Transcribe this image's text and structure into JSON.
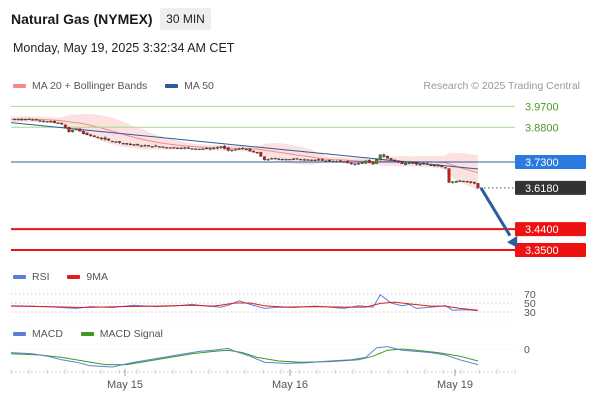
{
  "header": {
    "instrument": "Natural Gas (NYMEX)",
    "timeframe": "30 MIN",
    "datetime": "Monday, May 19, 2025 3:32:34 AM CET"
  },
  "legends": {
    "price": [
      {
        "label": "MA 20 + Bollinger Bands",
        "color": "#f48a8a"
      },
      {
        "label": "MA 50",
        "color": "#2d5c9c"
      }
    ],
    "rsi": [
      {
        "label": "RSI",
        "color": "#5b7fd6"
      },
      {
        "label": "9MA",
        "color": "#e01b1b"
      }
    ],
    "macd": [
      {
        "label": "MACD",
        "color": "#5b7fd6"
      },
      {
        "label": "MACD Signal",
        "color": "#3c9a1e"
      }
    ]
  },
  "credit": "Research © 2025 Trading Central",
  "colors": {
    "bull": "#3c9a1e",
    "bear": "#d01818",
    "resistance": "#a8d88a",
    "pivot": "#2d5c9c",
    "support": "#ee1111",
    "current": "#333333",
    "arrow": "#2d5c9c"
  },
  "chart_data": [
    {
      "type": "candlestick",
      "title": "Natural Gas (NYMEX)",
      "timeframe": "30 MIN",
      "x_labels": [
        "May 15",
        "May 16",
        "May 19"
      ],
      "ylim": [
        3.32,
        3.99
      ],
      "close_path": [
        [
          0,
          3.915
        ],
        [
          5,
          3.915
        ],
        [
          10,
          3.905
        ],
        [
          14,
          3.893
        ],
        [
          16,
          3.86
        ],
        [
          18,
          3.874
        ],
        [
          20,
          3.852
        ],
        [
          24,
          3.835
        ],
        [
          28,
          3.82
        ],
        [
          32,
          3.808
        ],
        [
          36,
          3.8
        ],
        [
          40,
          3.797
        ],
        [
          44,
          3.792
        ],
        [
          48,
          3.79
        ],
        [
          52,
          3.786
        ],
        [
          56,
          3.79
        ],
        [
          58,
          3.796
        ],
        [
          60,
          3.78
        ],
        [
          62,
          3.784
        ],
        [
          64,
          3.79
        ],
        [
          66,
          3.776
        ],
        [
          68,
          3.768
        ],
        [
          70,
          3.74
        ],
        [
          72,
          3.744
        ],
        [
          76,
          3.742
        ],
        [
          80,
          3.742
        ],
        [
          84,
          3.738
        ],
        [
          88,
          3.735
        ],
        [
          92,
          3.73
        ],
        [
          94,
          3.722
        ],
        [
          96,
          3.722
        ],
        [
          98,
          3.735
        ],
        [
          100,
          3.72
        ],
        [
          102,
          3.762
        ],
        [
          104,
          3.746
        ],
        [
          106,
          3.735
        ],
        [
          108,
          3.722
        ],
        [
          110,
          3.73
        ],
        [
          112,
          3.72
        ],
        [
          114,
          3.722
        ],
        [
          116,
          3.715
        ],
        [
          118,
          3.712
        ],
        [
          120,
          3.705
        ],
        [
          121,
          3.642
        ],
        [
          124,
          3.65
        ],
        [
          126,
          3.645
        ],
        [
          128,
          3.638
        ],
        [
          129,
          3.618
        ]
      ],
      "levels": [
        {
          "label": "3.9700",
          "value": 3.97,
          "role": "resistance"
        },
        {
          "label": "3.8800",
          "value": 3.88,
          "role": "resistance"
        },
        {
          "label": "3.7300",
          "value": 3.73,
          "role": "pivot"
        },
        {
          "label": "3.6180",
          "value": 3.618,
          "role": "current"
        },
        {
          "label": "3.4400",
          "value": 3.44,
          "role": "support"
        },
        {
          "label": "3.3500",
          "value": 3.35,
          "role": "support"
        }
      ],
      "forecast_arrow": {
        "from": 3.618,
        "to": 3.36
      },
      "ma50": {
        "start": 3.9,
        "end": 3.7
      },
      "series": [
        {
          "name": "MA 20 + Bollinger Bands"
        },
        {
          "name": "MA 50"
        }
      ]
    },
    {
      "type": "line",
      "panel": "RSI",
      "y_ticks": [
        "70",
        "50",
        "30"
      ],
      "ylim": [
        25,
        78
      ],
      "rsi": [
        [
          0,
          44
        ],
        [
          6,
          43
        ],
        [
          12,
          41
        ],
        [
          18,
          38
        ],
        [
          22,
          42
        ],
        [
          28,
          40
        ],
        [
          34,
          45
        ],
        [
          40,
          42
        ],
        [
          46,
          44
        ],
        [
          50,
          47
        ],
        [
          54,
          43
        ],
        [
          58,
          41
        ],
        [
          60,
          45
        ],
        [
          63,
          55
        ],
        [
          66,
          47
        ],
        [
          70,
          38
        ],
        [
          74,
          41
        ],
        [
          78,
          40
        ],
        [
          84,
          43
        ],
        [
          88,
          41
        ],
        [
          92,
          38
        ],
        [
          96,
          44
        ],
        [
          100,
          41
        ],
        [
          102,
          68
        ],
        [
          105,
          50
        ],
        [
          108,
          44
        ],
        [
          110,
          47
        ],
        [
          112,
          38
        ],
        [
          116,
          41
        ],
        [
          120,
          44
        ],
        [
          122,
          34
        ],
        [
          126,
          35
        ],
        [
          129,
          33
        ]
      ],
      "ma9": [
        [
          0,
          43
        ],
        [
          10,
          42
        ],
        [
          20,
          40
        ],
        [
          30,
          42
        ],
        [
          40,
          43
        ],
        [
          50,
          45
        ],
        [
          56,
          43
        ],
        [
          62,
          50
        ],
        [
          66,
          50
        ],
        [
          70,
          44
        ],
        [
          76,
          41
        ],
        [
          84,
          42
        ],
        [
          92,
          41
        ],
        [
          98,
          41
        ],
        [
          102,
          49
        ],
        [
          106,
          52
        ],
        [
          110,
          48
        ],
        [
          116,
          43
        ],
        [
          120,
          43
        ],
        [
          124,
          38
        ],
        [
          129,
          34
        ]
      ]
    },
    {
      "type": "line",
      "panel": "MACD",
      "y_ticks": [
        "0"
      ],
      "ylim": [
        -0.05,
        0.04
      ],
      "macd": [
        [
          0,
          -0.006
        ],
        [
          6,
          -0.008
        ],
        [
          10,
          -0.012
        ],
        [
          14,
          -0.018
        ],
        [
          18,
          -0.022
        ],
        [
          22,
          -0.028
        ],
        [
          28,
          -0.03
        ],
        [
          34,
          -0.022
        ],
        [
          40,
          -0.016
        ],
        [
          46,
          -0.01
        ],
        [
          52,
          -0.004
        ],
        [
          56,
          -0.002
        ],
        [
          60,
          0.001
        ],
        [
          62,
          -0.004
        ],
        [
          66,
          -0.012
        ],
        [
          70,
          -0.022
        ],
        [
          76,
          -0.024
        ],
        [
          82,
          -0.023
        ],
        [
          88,
          -0.02
        ],
        [
          94,
          -0.018
        ],
        [
          98,
          -0.014
        ],
        [
          101,
          0.002
        ],
        [
          104,
          0.004
        ],
        [
          108,
          -0.002
        ],
        [
          112,
          -0.004
        ],
        [
          116,
          -0.006
        ],
        [
          120,
          -0.01
        ],
        [
          124,
          -0.018
        ],
        [
          129,
          -0.026
        ]
      ],
      "signal": [
        [
          0,
          -0.008
        ],
        [
          8,
          -0.01
        ],
        [
          14,
          -0.014
        ],
        [
          20,
          -0.02
        ],
        [
          26,
          -0.026
        ],
        [
          32,
          -0.026
        ],
        [
          38,
          -0.02
        ],
        [
          44,
          -0.014
        ],
        [
          50,
          -0.008
        ],
        [
          56,
          -0.004
        ],
        [
          60,
          -0.002
        ],
        [
          64,
          -0.006
        ],
        [
          68,
          -0.014
        ],
        [
          74,
          -0.02
        ],
        [
          80,
          -0.022
        ],
        [
          88,
          -0.021
        ],
        [
          96,
          -0.018
        ],
        [
          100,
          -0.012
        ],
        [
          104,
          -0.002
        ],
        [
          108,
          0.0
        ],
        [
          112,
          -0.002
        ],
        [
          118,
          -0.006
        ],
        [
          124,
          -0.012
        ],
        [
          129,
          -0.02
        ]
      ]
    }
  ]
}
